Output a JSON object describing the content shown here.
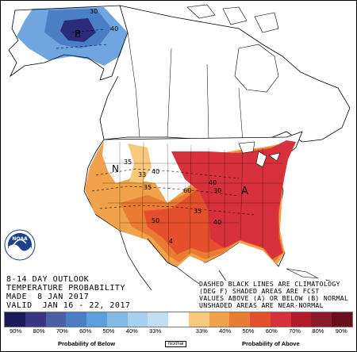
{
  "outlook": {
    "line1": "8-14 DAY OUTLOOK",
    "line2": "TEMPERATURE PROBABILITY",
    "line3": "MADE  8 JAN 2017",
    "line4": "VALID  JAN 16 - 22, 2017"
  },
  "notes": {
    "line1": "DASHED BLACK LINES ARE CLIMATOLOGY",
    "line2": "(DEG F) SHADED AREAS ARE FCST",
    "line3": "VALUES ABOVE (A) OR BELOW (B) NORMAL",
    "line4": "UNSHADED AREAS ARE NEAR-NORMAL"
  },
  "logo": {
    "text": "NOAA"
  },
  "map_labels": {
    "below_marker": "B",
    "above_marker": "A",
    "near_normal_marker": "N",
    "contour_40_ak": "40",
    "contour_30_ak": "30",
    "contour_35": "35",
    "contour_33": "33",
    "contour_40_w": "40",
    "contour_35_w": "35",
    "contour_60": "60",
    "contour_40_c": "40",
    "contour_30_c": "30",
    "contour_50": "50",
    "contour_40_s": "40",
    "contour_35_s": "35",
    "contour_4": "4"
  },
  "legend": {
    "colors": [
      "#1c1a5b",
      "#3a3585",
      "#4c5ea6",
      "#4a7fc6",
      "#5b9fdd",
      "#82bce6",
      "#a6d1ee",
      "#c2dff2",
      "#ffffff",
      "#f7c97a",
      "#f1a24a",
      "#ea7b33",
      "#e4502c",
      "#d9313b",
      "#b11c2c",
      "#8d1a2a",
      "#6b0e1e"
    ],
    "labels": [
      "90%",
      "80%",
      "70%",
      "60%",
      "50%",
      "40%",
      "33%",
      "",
      "33%",
      "40%",
      "50%",
      "60%",
      "70%",
      "80%",
      "90%"
    ],
    "below_title": "Probability of Below",
    "normal_title": "Normal",
    "above_title": "Probability of Above"
  },
  "icons": [
    "noaa-logo"
  ]
}
